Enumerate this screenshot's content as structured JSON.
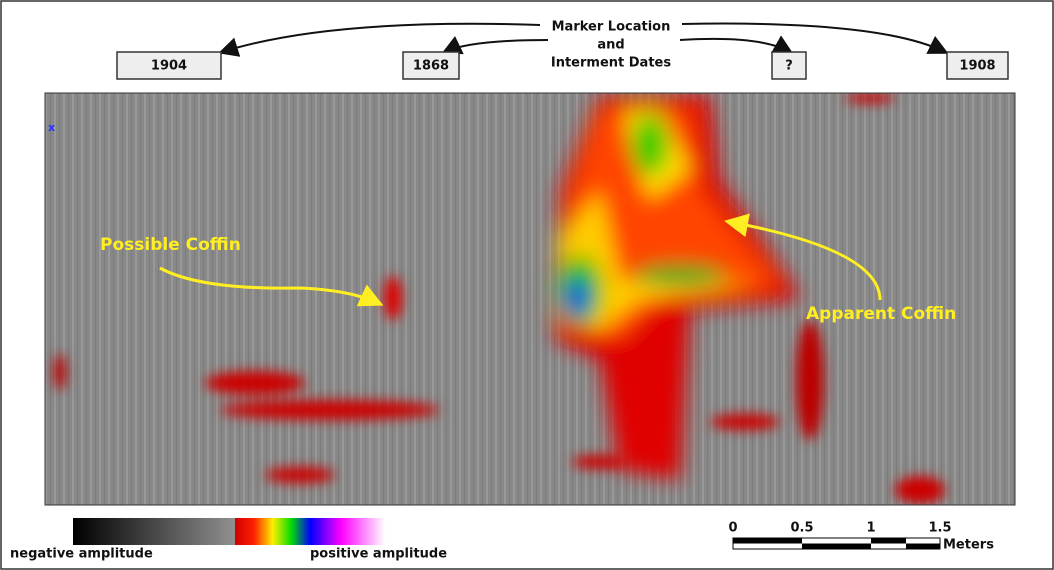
{
  "header": {
    "title_lines": [
      "Marker Location",
      "and",
      "Interment Dates"
    ]
  },
  "markers": [
    "1904",
    "1868",
    "?",
    "1908"
  ],
  "image": {
    "corner_mark": "x"
  },
  "annotations": {
    "left": "Possible Coffin",
    "right": "Apparent Coffin"
  },
  "legend": {
    "negative": "negative amplitude",
    "positive": "positive amplitude"
  },
  "scale": {
    "ticks": [
      "0",
      "0.5",
      "1",
      "1.5"
    ],
    "unit": "Meters"
  }
}
